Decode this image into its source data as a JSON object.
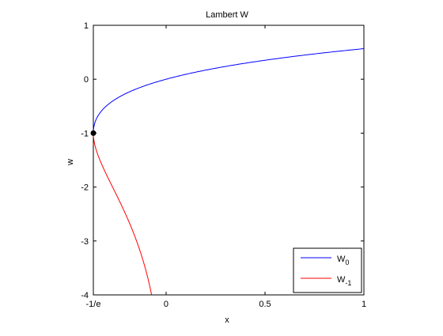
{
  "chart_data": {
    "type": "line",
    "title": "Lambert W",
    "xlabel": "x",
    "ylabel": "w",
    "xlim": [
      -0.36787944,
      1
    ],
    "ylim": [
      -4,
      1
    ],
    "xticks": [
      {
        "value": -0.36787944,
        "label": "-1/e"
      },
      {
        "value": 0,
        "label": "0"
      },
      {
        "value": 0.5,
        "label": "0.5"
      },
      {
        "value": 1,
        "label": "1"
      }
    ],
    "yticks": [
      {
        "value": 1,
        "label": "1"
      },
      {
        "value": 0,
        "label": "0"
      },
      {
        "value": -1,
        "label": "-1"
      },
      {
        "value": -2,
        "label": "-2"
      },
      {
        "value": -3,
        "label": "-3"
      },
      {
        "value": -4,
        "label": "-4"
      }
    ],
    "grid": false,
    "legend": {
      "position": "bottom-right",
      "entries": [
        {
          "base": "W",
          "sub": "0",
          "color": "#0000ff"
        },
        {
          "base": "W",
          "sub": "-1",
          "color": "#ff0000"
        }
      ]
    },
    "series": [
      {
        "label": "W_0",
        "color": "#0000ff",
        "w_range": [
          -1,
          0.567
        ],
        "relation": "x = w * exp(w)"
      },
      {
        "label": "W_-1",
        "color": "#ff0000",
        "w_range": [
          -4,
          -1
        ],
        "relation": "x = w * exp(w)"
      }
    ],
    "marker": {
      "x": -0.36787944,
      "y": -1,
      "color": "#000000"
    }
  }
}
